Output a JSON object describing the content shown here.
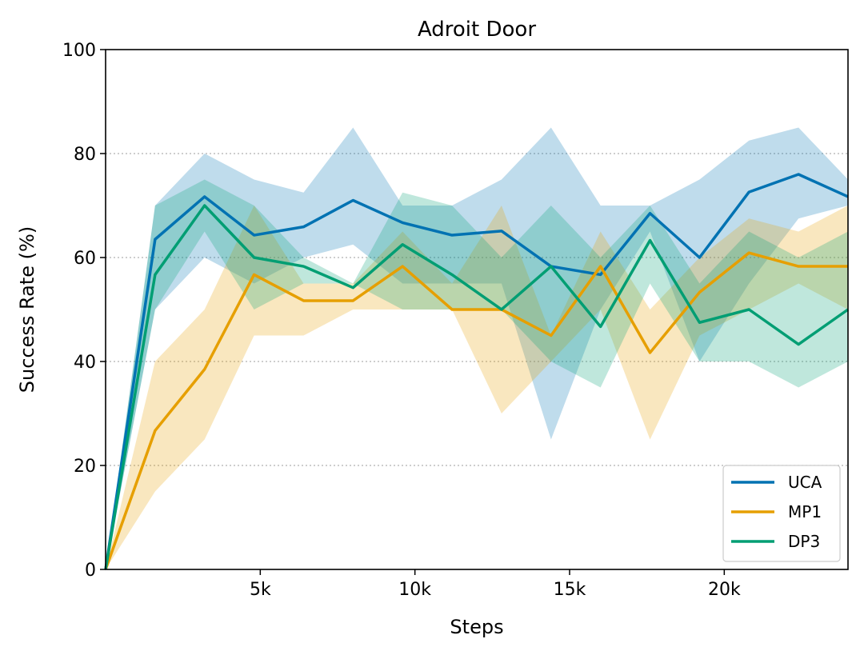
{
  "chart_data": {
    "type": "line",
    "title": "Adroit Door",
    "xlabel": "Steps",
    "ylabel": "Success Rate (%)",
    "xlim": [
      0,
      24000
    ],
    "ylim": [
      0,
      100
    ],
    "x": [
      0,
      1600,
      3200,
      4800,
      6400,
      8000,
      9600,
      11200,
      12800,
      14400,
      16000,
      17600,
      19200,
      20800,
      22400,
      24000
    ],
    "x_ticks": [
      5000,
      10000,
      15000,
      20000
    ],
    "x_tick_labels": [
      "5k",
      "10k",
      "15k",
      "20k"
    ],
    "y_ticks": [
      0,
      20,
      40,
      60,
      80,
      100
    ],
    "y_tick_labels": [
      "0",
      "20",
      "40",
      "60",
      "80",
      "100"
    ],
    "grid": "horizontal dotted",
    "legend_position": "lower-right",
    "series": [
      {
        "name": "UCA",
        "color": "#0072B2",
        "values": [
          0,
          63.5,
          71.7,
          64.3,
          65.9,
          71,
          66.7,
          64.3,
          65.1,
          58.3,
          56.7,
          68.5,
          60,
          72.6,
          76,
          71.7
        ],
        "lower": [
          0,
          50,
          60,
          55,
          60,
          62.5,
          55,
          55,
          55,
          25,
          50,
          65,
          40,
          55,
          67.5,
          70
        ],
        "upper": [
          0,
          70,
          80,
          75,
          72.5,
          85,
          70,
          70,
          75,
          85,
          70,
          70,
          75,
          82.5,
          85,
          75
        ]
      },
      {
        "name": "MP1",
        "color": "#E69F00",
        "values": [
          0,
          26.7,
          38.5,
          56.7,
          51.7,
          51.7,
          58.3,
          50,
          50,
          45,
          58.3,
          41.7,
          53.3,
          60.9,
          58.3,
          58.3
        ],
        "lower": [
          0,
          15,
          25,
          45,
          45,
          50,
          50,
          50,
          30,
          40,
          50,
          25,
          45,
          50,
          55,
          50
        ],
        "upper": [
          0,
          40,
          50,
          70,
          55,
          55,
          65,
          55,
          70,
          45,
          65,
          50,
          60,
          67.5,
          65,
          70
        ]
      },
      {
        "name": "DP3",
        "color": "#009E73",
        "values": [
          0,
          56.7,
          70,
          60,
          58.3,
          54.2,
          62.5,
          56.7,
          50,
          58.3,
          46.7,
          63.3,
          47.5,
          50,
          43.3,
          50
        ],
        "lower": [
          0,
          50,
          65,
          50,
          55,
          55,
          50,
          50,
          50,
          40,
          35,
          55,
          40,
          40,
          35,
          40
        ],
        "upper": [
          0,
          70,
          75,
          70,
          60,
          55,
          72.5,
          70,
          60,
          70,
          60,
          70,
          55,
          65,
          60,
          65
        ]
      }
    ]
  }
}
